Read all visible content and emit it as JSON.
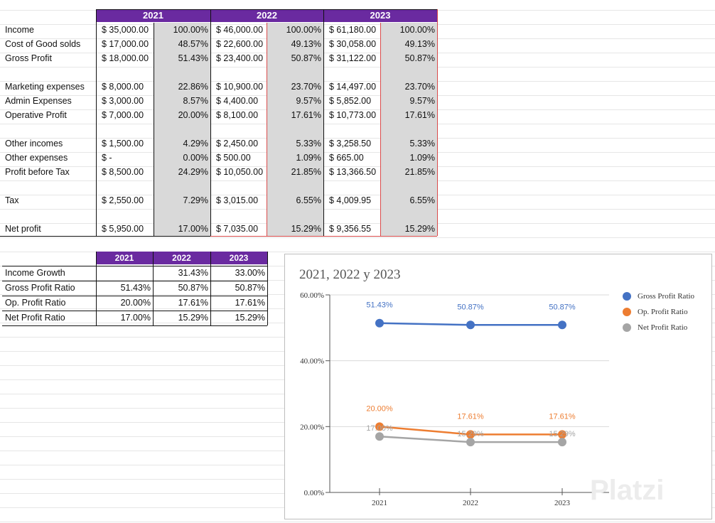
{
  "pl_table": {
    "years": [
      "2021",
      "2022",
      "2023"
    ],
    "rows": [
      {
        "label": "Income",
        "values": [
          [
            "$ 35,000.00",
            "100.00%"
          ],
          [
            "$ 46,000.00",
            "100.00%"
          ],
          [
            "$ 61,180.00",
            "100.00%"
          ]
        ]
      },
      {
        "label": "Cost of Good solds",
        "values": [
          [
            "$ 17,000.00",
            "48.57%"
          ],
          [
            "$ 22,600.00",
            "49.13%"
          ],
          [
            "$ 30,058.00",
            "49.13%"
          ]
        ]
      },
      {
        "label": "Gross Profit",
        "values": [
          [
            "$ 18,000.00",
            "51.43%"
          ],
          [
            "$ 23,400.00",
            "50.87%"
          ],
          [
            "$ 31,122.00",
            "50.87%"
          ]
        ]
      },
      {
        "label": "",
        "values": [
          [
            "",
            ""
          ],
          [
            "",
            ""
          ],
          [
            "",
            ""
          ]
        ]
      },
      {
        "label": "Marketing expenses",
        "values": [
          [
            "$ 8,000.00",
            "22.86%"
          ],
          [
            "$ 10,900.00",
            "23.70%"
          ],
          [
            "$ 14,497.00",
            "23.70%"
          ]
        ]
      },
      {
        "label": "Admin Expenses",
        "values": [
          [
            "$ 3,000.00",
            "8.57%"
          ],
          [
            "$ 4,400.00",
            "9.57%"
          ],
          [
            "$ 5,852.00",
            "9.57%"
          ]
        ]
      },
      {
        "label": "Operative Profit",
        "values": [
          [
            "$ 7,000.00",
            "20.00%"
          ],
          [
            "$ 8,100.00",
            "17.61%"
          ],
          [
            "$ 10,773.00",
            "17.61%"
          ]
        ]
      },
      {
        "label": "",
        "values": [
          [
            "",
            ""
          ],
          [
            "",
            ""
          ],
          [
            "",
            ""
          ]
        ]
      },
      {
        "label": "Other incomes",
        "values": [
          [
            "$ 1,500.00",
            "4.29%"
          ],
          [
            "$ 2,450.00",
            "5.33%"
          ],
          [
            "$ 3,258.50",
            "5.33%"
          ]
        ]
      },
      {
        "label": "Other expenses",
        "values": [
          [
            "$          -",
            "0.00%"
          ],
          [
            "$    500.00",
            "1.09%"
          ],
          [
            "$    665.00",
            "1.09%"
          ]
        ]
      },
      {
        "label": "Profit before Tax",
        "values": [
          [
            "$ 8,500.00",
            "24.29%"
          ],
          [
            "$ 10,050.00",
            "21.85%"
          ],
          [
            "$ 13,366.50",
            "21.85%"
          ]
        ]
      },
      {
        "label": "",
        "values": [
          [
            "",
            ""
          ],
          [
            "",
            ""
          ],
          [
            "",
            ""
          ]
        ]
      },
      {
        "label": "Tax",
        "values": [
          [
            "$ 2,550.00",
            "7.29%"
          ],
          [
            "$ 3,015.00",
            "6.55%"
          ],
          [
            "$ 4,009.95",
            "6.55%"
          ]
        ]
      },
      {
        "label": "",
        "values": [
          [
            "",
            ""
          ],
          [
            "",
            ""
          ],
          [
            "",
            ""
          ]
        ]
      },
      {
        "label": "Net profit",
        "values": [
          [
            "$ 5,950.00",
            "17.00%"
          ],
          [
            "$ 7,035.00",
            "15.29%"
          ],
          [
            "$ 9,356.55",
            "15.29%"
          ]
        ]
      }
    ]
  },
  "ratio_table": {
    "years": [
      "2021",
      "2022",
      "2023"
    ],
    "rows": [
      {
        "label": "Income Growth",
        "values": [
          "",
          "31.43%",
          "33.00%"
        ]
      },
      {
        "label": "Gross Profit Ratio",
        "values": [
          "51.43%",
          "50.87%",
          "50.87%"
        ]
      },
      {
        "label": "Op. Profit Ratio",
        "values": [
          "20.00%",
          "17.61%",
          "17.61%"
        ]
      },
      {
        "label": "Net Profit Ratio",
        "values": [
          "17.00%",
          "15.29%",
          "15.29%"
        ]
      }
    ]
  },
  "chart_data": {
    "type": "line",
    "title": "2021, 2022 y 2023",
    "categories": [
      "2021",
      "2022",
      "2023"
    ],
    "series": [
      {
        "name": "Gross Profit Ratio",
        "values": [
          51.43,
          50.87,
          50.87
        ],
        "labels": [
          "51.43%",
          "50.87%",
          "50.87%"
        ],
        "color": "#4472c4"
      },
      {
        "name": "Op. Profit Ratio",
        "values": [
          20.0,
          17.61,
          17.61
        ],
        "labels": [
          "20.00%",
          "17.61%",
          "17.61%"
        ],
        "color": "#ed7d31"
      },
      {
        "name": "Net Profit Ratio",
        "values": [
          17.0,
          15.29,
          15.29
        ],
        "labels": [
          "17.00%",
          "15.29%",
          "15.29%"
        ],
        "color": "#a5a5a5"
      }
    ],
    "yticks": [
      "0.00%",
      "20.00%",
      "40.00%",
      "60.00%"
    ],
    "ylim": [
      0,
      60
    ],
    "grid": true,
    "legend": "right"
  },
  "watermark": "Platzi",
  "colors": {
    "header": "#6a2aa0",
    "highlight": "#d9d9d9",
    "border_red": "#d94a4a"
  }
}
